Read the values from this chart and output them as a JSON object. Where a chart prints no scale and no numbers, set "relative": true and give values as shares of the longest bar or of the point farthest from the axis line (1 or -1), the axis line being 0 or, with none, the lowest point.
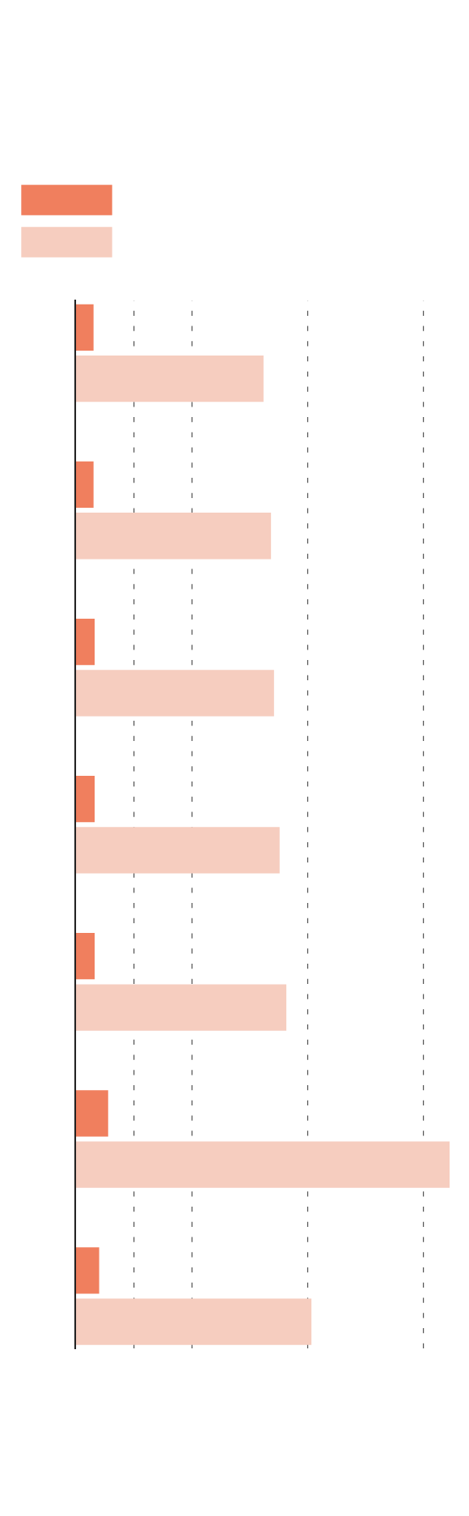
{
  "chart_data": {
    "type": "bar",
    "orientation": "horizontal",
    "relative": true,
    "categories": [
      null,
      null,
      null,
      null,
      null,
      null,
      null
    ],
    "series": [
      {
        "color": "#f07f5e",
        "values": [
          0.049,
          0.049,
          0.052,
          0.052,
          0.052,
          0.088,
          0.064
        ]
      },
      {
        "color": "#f6cdbf",
        "values": [
          0.503,
          0.523,
          0.531,
          0.546,
          0.564,
          1,
          0.631
        ]
      }
    ],
    "ref_lines": [
      {
        "axis": "x",
        "value": 0.157,
        "color": "#555555",
        "line_style": "dashed"
      },
      {
        "axis": "x",
        "value": 0.312,
        "color": "#555555",
        "line_style": "dashed"
      },
      {
        "axis": "x",
        "value": 0.621,
        "color": "#555555",
        "line_style": "dashed"
      },
      {
        "axis": "x",
        "value": 0.93,
        "color": "#555555",
        "line_style": "dashed"
      }
    ],
    "grid": false
  }
}
